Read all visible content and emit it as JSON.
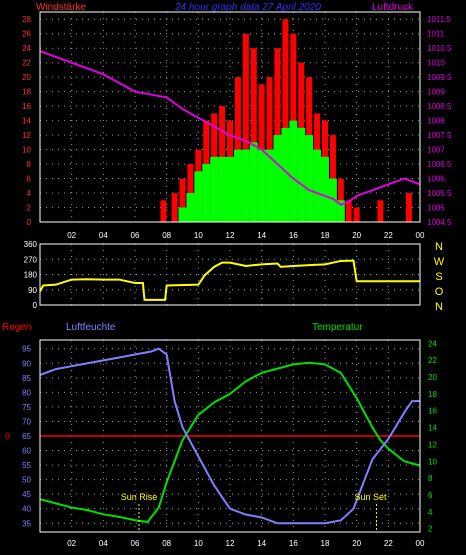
{
  "colors": {
    "background": "#000000",
    "frame": "#ffffff",
    "grid": "#9a9a9a",
    "wind_axis": "#ff3030",
    "pressure_axis": "#e000e0",
    "pressure_line": "#e000e0",
    "wind_avg": "#00ff00",
    "wind_gust": "#ff0000",
    "direction_line": "#ffff00",
    "direction_axis": "#ffffff",
    "compass_letters": "#ffff00",
    "humidity": "#8080ff",
    "temperature": "#00e000",
    "rain": "#ff0000",
    "sun_text": "#ffff00"
  },
  "header": {
    "wind_title": "Windstärke",
    "graph_title": "24 hour graph data   27 April 2020",
    "pressure_title": "Luftdruck"
  },
  "compass": [
    "N",
    "W",
    "S",
    "O",
    "N"
  ],
  "bottom_labels": {
    "rain": "Regen",
    "humidity": "Luftfeuchte",
    "temperature": "Temperatur",
    "sunrise": "Sun Rise",
    "sunset": "Sun Set"
  },
  "chart_data": [
    {
      "type": "bar",
      "name": "wind_pressure",
      "x_ticks": [
        "02",
        "04",
        "06",
        "08",
        "10",
        "12",
        "14",
        "16",
        "18",
        "20",
        "22",
        "00"
      ],
      "y_left_ticks": [
        "0",
        "2",
        "4",
        "6",
        "8",
        "10",
        "12",
        "14",
        "16",
        "18",
        "20",
        "22",
        "24",
        "26",
        "28"
      ],
      "y_left_range": [
        0,
        29
      ],
      "y_right_ticks": [
        "1004.5",
        "1005",
        "1005.5",
        "1006",
        "1006.5",
        "1007",
        "1007.5",
        "1008",
        "1008.5",
        "1009",
        "1009.5",
        "1010",
        "1010.5",
        "1011",
        "1011.5"
      ],
      "y_right_range": [
        1004.5,
        1011.75
      ],
      "grid": true,
      "series": [
        {
          "name": "Luftdruck",
          "type": "line",
          "hours": [
            0,
            1,
            2,
            3,
            4,
            5,
            6,
            7,
            8,
            9,
            10,
            11,
            12,
            13,
            14,
            15,
            16,
            17,
            18,
            18.5,
            19,
            19.5,
            20,
            21,
            22,
            23,
            24
          ],
          "values": [
            1010.4,
            1010.2,
            1010.0,
            1009.8,
            1009.6,
            1009.3,
            1009.0,
            1008.9,
            1008.8,
            1008.4,
            1008.1,
            1007.8,
            1007.5,
            1007.3,
            1007.0,
            1006.5,
            1006.0,
            1005.6,
            1005.4,
            1005.3,
            1005.1,
            1005.2,
            1005.4,
            1005.6,
            1005.8,
            1006.0,
            1005.8
          ]
        },
        {
          "name": "Windboeen",
          "type": "bar",
          "hours": [
            7.8,
            8.5,
            9,
            9.5,
            10,
            10.5,
            11,
            11.5,
            12,
            12.5,
            13,
            13.5,
            14,
            14.5,
            15,
            15.5,
            16,
            16.5,
            17,
            17.5,
            18,
            18.5,
            19,
            19.5,
            20,
            21.5,
            23.3
          ],
          "values": [
            3,
            4,
            6,
            8,
            10,
            14,
            15,
            16,
            14,
            20,
            26,
            24,
            19,
            20,
            24,
            28,
            26,
            22,
            20,
            15,
            14,
            12,
            6,
            3,
            2,
            3,
            4
          ]
        },
        {
          "name": "Windmittel",
          "type": "bar",
          "hours": [
            9,
            9.5,
            10,
            10.5,
            11,
            11.5,
            12,
            12.5,
            13,
            13.5,
            14,
            14.5,
            15,
            15.5,
            16,
            16.5,
            17,
            17.5,
            18,
            18.5,
            19
          ],
          "values": [
            2,
            4,
            7,
            8,
            9,
            9,
            9,
            10,
            10,
            11,
            10,
            10,
            12,
            13,
            14,
            13,
            12,
            10,
            9,
            6,
            3
          ]
        }
      ]
    },
    {
      "type": "line",
      "name": "wind_direction",
      "x_ticks": [
        "02",
        "04",
        "06",
        "08",
        "10",
        "12",
        "14",
        "16",
        "18",
        "20",
        "22",
        "00"
      ],
      "y_ticks": [
        "0",
        "90",
        "180",
        "270",
        "360"
      ],
      "y_range": [
        0,
        360
      ],
      "grid": true,
      "series": [
        {
          "name": "Windrichtung",
          "hours": [
            0,
            0.2,
            1,
            2,
            3,
            4,
            5,
            6,
            6.5,
            6.6,
            7.9,
            8,
            10,
            10.4,
            11,
            11.5,
            12,
            13,
            14,
            15,
            15.2,
            16,
            17,
            18,
            19,
            19.8,
            20,
            21,
            22,
            23,
            24
          ],
          "values": [
            80,
            115,
            120,
            150,
            152,
            150,
            150,
            130,
            130,
            30,
            30,
            115,
            120,
            175,
            225,
            250,
            250,
            230,
            240,
            245,
            225,
            230,
            235,
            240,
            260,
            262,
            140,
            140,
            140,
            140,
            140
          ]
        }
      ]
    },
    {
      "type": "line",
      "name": "humidity_temperature",
      "x_ticks": [
        "02",
        "04",
        "06",
        "08",
        "10",
        "12",
        "14",
        "16",
        "18",
        "20",
        "22",
        "00"
      ],
      "y_left_ticks": [
        "35",
        "40",
        "45",
        "50",
        "55",
        "60",
        "65",
        "70",
        "75",
        "80",
        "85",
        "90",
        "95"
      ],
      "y_left_range": [
        32,
        98
      ],
      "y_right_ticks": [
        "2",
        "4",
        "6",
        "8",
        "10",
        "12",
        "14",
        "16",
        "18",
        "20",
        "22",
        "24"
      ],
      "y_right_range": [
        1.6,
        24.4
      ],
      "grid": true,
      "rain_label": "0",
      "sunrise_hour": 6.25,
      "sunset_hour": 21.25,
      "series": [
        {
          "name": "Luftfeuchte",
          "hours": [
            0,
            0.5,
            1,
            2,
            3,
            4,
            5,
            6,
            7,
            7.5,
            8,
            8.5,
            9,
            10,
            11,
            12,
            13,
            14,
            15,
            16,
            17,
            18,
            19,
            19.8,
            20.5,
            21,
            22,
            23,
            23.5,
            24
          ],
          "values": [
            86,
            87,
            88,
            89,
            90,
            91,
            92,
            93,
            94,
            95,
            93,
            77,
            68,
            58,
            48,
            40,
            38,
            37,
            35,
            35,
            35,
            35,
            36,
            40,
            50,
            57,
            64,
            73,
            77,
            77
          ]
        },
        {
          "name": "Temperatur",
          "hours": [
            0,
            1,
            2,
            3,
            4,
            5,
            6,
            6.8,
            7.5,
            8,
            8.5,
            9,
            10,
            11,
            12,
            13,
            14,
            15,
            16,
            17,
            18,
            19,
            20,
            21,
            21.5,
            22,
            23,
            24
          ],
          "values": [
            5.5,
            5.0,
            4.5,
            4.2,
            3.7,
            3.4,
            3.0,
            2.8,
            4.5,
            7.5,
            10.0,
            12.5,
            15.5,
            17.0,
            18.0,
            19.5,
            20.5,
            21.0,
            21.5,
            21.7,
            21.5,
            20.5,
            17.5,
            14.0,
            12.5,
            11.5,
            10.0,
            9.5
          ]
        }
      ]
    }
  ]
}
